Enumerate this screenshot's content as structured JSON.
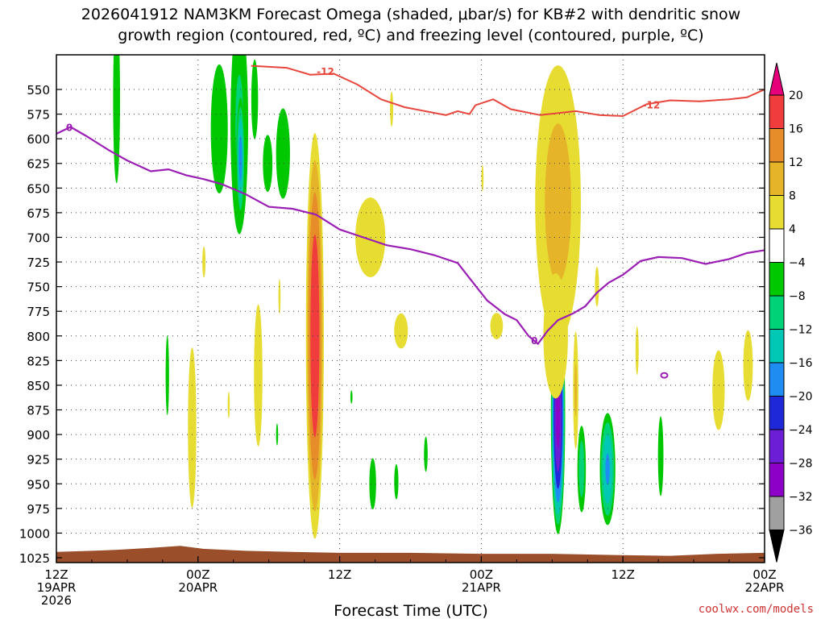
{
  "header": {
    "title_line1": "2026041912 NAM3KM Forecast Omega (shaded, μbar/s) for KB#2 with dendritic snow",
    "title_line2": "growth region (contoured, red, ºC) and freezing level (contoured, purple, ºC)"
  },
  "footer": {
    "xlabel": "Forecast Time (UTC)",
    "credit": "coolwx.com/models"
  },
  "chart_data": {
    "type": "heatmap",
    "title": "2026041912 NAM3KM Forecast Omega (shaded, μbar/s) for KB#2 with dendritic snow growth region (contoured, red, ºC) and freezing level (contoured, purple, ºC)",
    "xlabel": "Forecast Time (UTC)",
    "ylabel": "",
    "x_range_hours": [
      0,
      60
    ],
    "x_ticks": [
      {
        "h": 0,
        "lines": [
          "12Z",
          "19APR",
          "2026"
        ]
      },
      {
        "h": 12,
        "lines": [
          "00Z",
          "20APR"
        ]
      },
      {
        "h": 24,
        "lines": [
          "12Z"
        ]
      },
      {
        "h": 36,
        "lines": [
          "00Z",
          "21APR"
        ]
      },
      {
        "h": 48,
        "lines": [
          "12Z"
        ]
      },
      {
        "h": 60,
        "lines": [
          "00Z",
          "22APR"
        ]
      }
    ],
    "pressure_levels": [
      550,
      575,
      600,
      625,
      650,
      675,
      700,
      725,
      750,
      775,
      800,
      825,
      850,
      875,
      900,
      925,
      950,
      975,
      1000,
      1025
    ],
    "grid": true,
    "colorbar": {
      "bounds": [
        -36,
        -32,
        -28,
        -24,
        -20,
        -16,
        -12,
        -8,
        -4,
        4,
        8,
        12,
        16,
        20
      ],
      "labels": [
        "20",
        "16",
        "12",
        "8",
        "4",
        "−4",
        "−8",
        "−12",
        "−16",
        "−20",
        "−24",
        "−28",
        "−32",
        "−36"
      ],
      "colors": [
        "#000000",
        "#a0a0a0",
        "#8c00c8",
        "#6c1ed6",
        "#1e28d8",
        "#1e8cf0",
        "#00c8b4",
        "#00d278",
        "#00c800",
        "#ffffff",
        "#e6dc32",
        "#e6b428",
        "#e68c28",
        "#f03c3c",
        "#f0287a",
        "#e6007a"
      ]
    },
    "omega_features": [
      {
        "sign": "-",
        "cx": 5.1,
        "p": 560,
        "rh": 0.45,
        "rp": 130,
        "peak": -7
      },
      {
        "sign": "-",
        "cx": 13.8,
        "p": 590,
        "rh": 1.1,
        "rp": 100,
        "peak": -7
      },
      {
        "sign": "-",
        "cx": 16.8,
        "p": 560,
        "rh": 0.5,
        "rp": 70,
        "peak": -6
      },
      {
        "sign": "-",
        "cx": 17.9,
        "p": 625,
        "rh": 0.7,
        "rp": 50,
        "peak": -6
      },
      {
        "sign": "-",
        "cx": 15.5,
        "p": 585,
        "rh": 1.0,
        "rp": 150,
        "peak": -9
      },
      {
        "sign": "-",
        "cx": 15.6,
        "p": 620,
        "rh": 0.4,
        "rp": 70,
        "peak": -18
      },
      {
        "sign": "-",
        "cx": 19.2,
        "p": 615,
        "rh": 0.9,
        "rp": 70,
        "peak": -7
      },
      {
        "sign": "-",
        "cx": 9.4,
        "p": 840,
        "rh": 0.25,
        "rp": 70,
        "peak": -6
      },
      {
        "sign": "-",
        "cx": 18.7,
        "p": 900,
        "rh": 0.2,
        "rp": 25,
        "peak": -5
      },
      {
        "sign": "-",
        "cx": 25.0,
        "p": 862,
        "rh": 0.2,
        "rp": 15,
        "peak": -5
      },
      {
        "sign": "-",
        "cx": 26.8,
        "p": 950,
        "rh": 0.5,
        "rp": 45,
        "peak": -6
      },
      {
        "sign": "-",
        "cx": 28.8,
        "p": 948,
        "rh": 0.4,
        "rp": 40,
        "peak": -5
      },
      {
        "sign": "-",
        "cx": 31.3,
        "p": 920,
        "rh": 0.35,
        "rp": 40,
        "peak": -5
      },
      {
        "sign": "-",
        "cx": 42.5,
        "p": 880,
        "rh": 0.65,
        "rp": 130,
        "peak": -30
      },
      {
        "sign": "-",
        "cx": 44.5,
        "p": 935,
        "rh": 0.45,
        "rp": 55,
        "peak": -11
      },
      {
        "sign": "-",
        "cx": 46.7,
        "p": 935,
        "rh": 0.75,
        "rp": 65,
        "peak": -17
      },
      {
        "sign": "-",
        "cx": 51.2,
        "p": 922,
        "rh": 0.4,
        "rp": 70,
        "peak": -6
      },
      {
        "sign": "+",
        "cx": 11.5,
        "p": 893,
        "rh": 0.5,
        "rp": 115,
        "peak": 8
      },
      {
        "sign": "+",
        "cx": 12.5,
        "p": 725,
        "rh": 0.3,
        "rp": 35,
        "peak": 5
      },
      {
        "sign": "+",
        "cx": 14.6,
        "p": 870,
        "rh": 0.2,
        "rp": 30,
        "peak": 5
      },
      {
        "sign": "+",
        "cx": 17.1,
        "p": 840,
        "rh": 0.55,
        "rp": 110,
        "peak": 7
      },
      {
        "sign": "+",
        "cx": 18.9,
        "p": 760,
        "rh": 0.2,
        "rp": 40,
        "peak": 5
      },
      {
        "sign": "+",
        "cx": 21.9,
        "p": 800,
        "rh": 0.85,
        "rp": 230,
        "peak": 20
      },
      {
        "sign": "+",
        "cx": 26.6,
        "p": 700,
        "rh": 2.2,
        "rp": 70,
        "peak": 6
      },
      {
        "sign": "+",
        "cx": 29.2,
        "p": 795,
        "rh": 1.3,
        "rp": 40,
        "peak": 5
      },
      {
        "sign": "+",
        "cx": 28.4,
        "p": 570,
        "rh": 0.3,
        "rp": 40,
        "peak": 5
      },
      {
        "sign": "+",
        "cx": 36.1,
        "p": 640,
        "rh": 0.2,
        "rp": 30,
        "peak": 5
      },
      {
        "sign": "+",
        "cx": 37.3,
        "p": 790,
        "rh": 1.2,
        "rp": 30,
        "peak": 5
      },
      {
        "sign": "+",
        "cx": 42.5,
        "p": 665,
        "rh": 2.5,
        "rp": 180,
        "peak": 10
      },
      {
        "sign": "+",
        "cx": 42.3,
        "p": 800,
        "rh": 1.8,
        "rp": 110,
        "peak": 6
      },
      {
        "sign": "+",
        "cx": 44.0,
        "p": 855,
        "rh": 0.3,
        "rp": 80,
        "peak": 9
      },
      {
        "sign": "+",
        "cx": 45.8,
        "p": 750,
        "rh": 0.3,
        "rp": 35,
        "peak": 6
      },
      {
        "sign": "+",
        "cx": 49.2,
        "p": 815,
        "rh": 0.3,
        "rp": 55,
        "peak": 5
      },
      {
        "sign": "+",
        "cx": 56.1,
        "p": 855,
        "rh": 0.9,
        "rp": 70,
        "peak": 6
      },
      {
        "sign": "+",
        "cx": 58.6,
        "p": 830,
        "rh": 0.9,
        "rp": 80,
        "peak": 5
      }
    ],
    "dgz_contour_m12C": {
      "label": "-12",
      "points": [
        [
          16.5,
          526
        ],
        [
          19.5,
          528
        ],
        [
          21.5,
          535
        ],
        [
          23.5,
          534
        ],
        [
          25.5,
          545
        ],
        [
          27.5,
          560
        ],
        [
          29.5,
          568
        ],
        [
          33.0,
          576
        ],
        [
          34.0,
          572
        ],
        [
          35.0,
          575
        ],
        [
          35.5,
          566
        ],
        [
          37.0,
          560
        ],
        [
          38.5,
          570
        ],
        [
          41.0,
          576
        ],
        [
          44.0,
          572
        ],
        [
          46.0,
          576
        ],
        [
          48.0,
          577
        ],
        [
          50.0,
          565
        ],
        [
          52.0,
          561
        ],
        [
          54.5,
          562
        ],
        [
          57.0,
          560
        ],
        [
          58.5,
          558
        ],
        [
          60.0,
          550
        ]
      ]
    },
    "freezing_level_0C": {
      "label": "0",
      "points": [
        [
          0,
          595
        ],
        [
          1.2,
          588
        ],
        [
          2.5,
          597
        ],
        [
          4.5,
          612
        ],
        [
          6.0,
          622
        ],
        [
          8.0,
          633
        ],
        [
          9.5,
          631
        ],
        [
          11.0,
          637
        ],
        [
          12.5,
          641
        ],
        [
          14.0,
          646
        ],
        [
          16.0,
          656
        ],
        [
          18.0,
          669
        ],
        [
          20.0,
          671
        ],
        [
          22.0,
          677
        ],
        [
          24.0,
          692
        ],
        [
          26.0,
          700
        ],
        [
          28.0,
          708
        ],
        [
          30.0,
          712
        ],
        [
          32.0,
          718
        ],
        [
          34.0,
          726
        ],
        [
          35.5,
          749
        ],
        [
          36.5,
          764
        ],
        [
          38.0,
          778
        ],
        [
          39.0,
          784
        ],
        [
          40.0,
          800
        ],
        [
          40.8,
          808
        ],
        [
          41.6,
          795
        ],
        [
          42.5,
          784
        ],
        [
          43.8,
          777
        ],
        [
          44.8,
          770
        ],
        [
          45.8,
          756
        ],
        [
          46.8,
          746
        ],
        [
          48.0,
          738
        ],
        [
          49.5,
          724
        ],
        [
          51.0,
          720
        ],
        [
          53.0,
          721
        ],
        [
          55.0,
          727
        ],
        [
          57.0,
          722
        ],
        [
          58.5,
          716
        ],
        [
          60.0,
          713
        ]
      ],
      "loop": {
        "h": 51.5,
        "p": 840
      }
    },
    "terrain_surface_hpa": [
      [
        0,
        1019
      ],
      [
        3,
        1018
      ],
      [
        5,
        1017
      ],
      [
        8,
        1015
      ],
      [
        10.5,
        1013
      ],
      [
        12.5,
        1016
      ],
      [
        16,
        1018
      ],
      [
        20,
        1019
      ],
      [
        24,
        1020
      ],
      [
        30,
        1020
      ],
      [
        36,
        1021
      ],
      [
        42,
        1021
      ],
      [
        46,
        1022
      ],
      [
        52,
        1023
      ],
      [
        56,
        1021
      ],
      [
        60,
        1020
      ]
    ]
  }
}
